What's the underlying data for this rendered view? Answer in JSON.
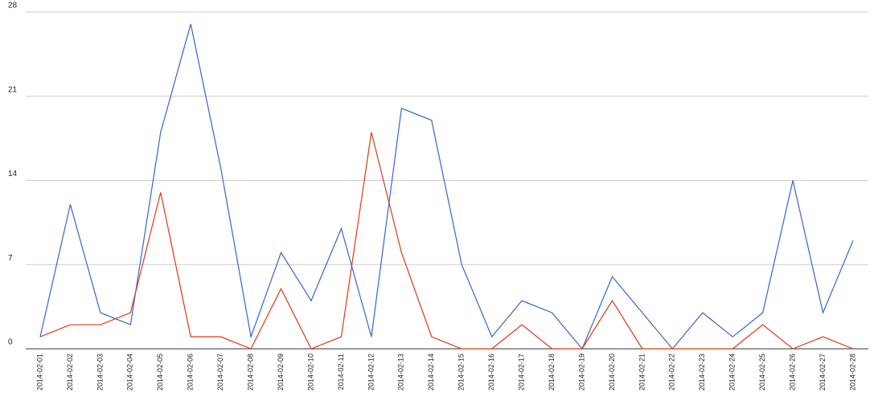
{
  "chart_data": {
    "type": "line",
    "categories": [
      "2014-02-01",
      "2014-02-02",
      "2014-02-03",
      "2014-02-04",
      "2014-02-05",
      "2014-02-06",
      "2014-02-07",
      "2014-02-08",
      "2014-02-09",
      "2014-02-10",
      "2014-02-11",
      "2014-02-12",
      "2014-02-13",
      "2014-02-14",
      "2014-02-15",
      "2014-02-16",
      "2014-02-17",
      "2014-02-18",
      "2014-02-19",
      "2014-02-20",
      "2014-02-21",
      "2014-02-22",
      "2014-02-23",
      "2014-02-24",
      "2014-02-25",
      "2014-02-26",
      "2014-02-27",
      "2014-02-28"
    ],
    "series": [
      {
        "color": "#3366cc",
        "values": [
          1,
          12,
          3,
          2,
          18,
          27,
          15,
          1,
          8,
          4,
          10,
          1,
          20,
          19,
          7,
          1,
          4,
          3,
          0,
          6,
          3,
          0,
          3,
          1,
          3,
          14,
          3,
          9
        ]
      },
      {
        "color": "#dc3912",
        "values": [
          1,
          2,
          2,
          3,
          13,
          1,
          1,
          0,
          5,
          0,
          1,
          18,
          8,
          1,
          0,
          0,
          2,
          0,
          0,
          4,
          0,
          0,
          0,
          0,
          2,
          0,
          1,
          0
        ]
      }
    ],
    "ylim": [
      0,
      28
    ],
    "yticks": [
      0,
      7,
      14,
      21,
      28
    ],
    "grid": true
  }
}
